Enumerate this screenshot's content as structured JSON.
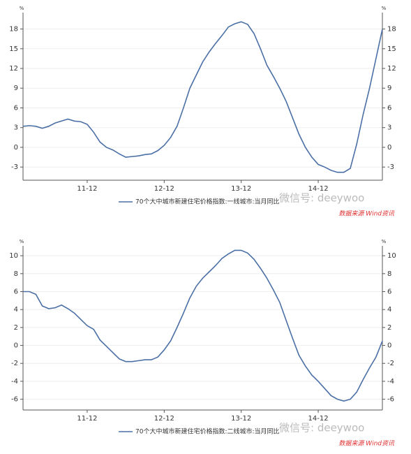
{
  "chart_data": [
    {
      "type": "line",
      "y_unit": "%",
      "categories": [
        null,
        null,
        null,
        null,
        null,
        null,
        null,
        null,
        null,
        null,
        "11-12",
        null,
        null,
        null,
        null,
        null,
        null,
        null,
        null,
        null,
        null,
        null,
        "12-12",
        null,
        null,
        null,
        null,
        null,
        null,
        null,
        null,
        null,
        null,
        null,
        "13-12",
        null,
        null,
        null,
        null,
        null,
        null,
        null,
        null,
        null,
        null,
        null,
        "14-12",
        null,
        null,
        null,
        null,
        null,
        null,
        null,
        null,
        null,
        null
      ],
      "series": [
        {
          "name": "70个大中城市新建住宅价格指数:一线城市:当月同比",
          "color": "#4a6fa5",
          "values": [
            3.2,
            3.3,
            3.2,
            2.9,
            3.2,
            3.7,
            4.0,
            4.3,
            4.0,
            3.9,
            3.5,
            2.3,
            0.8,
            0,
            -0.4,
            -1.0,
            -1.5,
            -1.4,
            -1.3,
            -1.1,
            -1.0,
            -0.5,
            0.3,
            1.5,
            3.2,
            6,
            9,
            11,
            13,
            14.5,
            15.8,
            17,
            18.3,
            18.8,
            19.1,
            18.7,
            17.3,
            15,
            12.5,
            10.8,
            9,
            7,
            4.5,
            2,
            0,
            -1.5,
            -2.6,
            -3.0,
            -3.5,
            -3.8,
            -3.8,
            -3.2,
            0.5,
            5,
            9,
            13.5,
            18
          ]
        }
      ],
      "ylim": [
        -5,
        20.5
      ],
      "yticks": [
        -3,
        0,
        3,
        6,
        9,
        12,
        15,
        18
      ],
      "grid": true,
      "watermark": "微信号: deeywoo",
      "source": "数据来源 Wind资讯"
    },
    {
      "type": "line",
      "y_unit": "%",
      "categories": [
        null,
        null,
        null,
        null,
        null,
        null,
        null,
        null,
        null,
        null,
        "11-12",
        null,
        null,
        null,
        null,
        null,
        null,
        null,
        null,
        null,
        null,
        null,
        "12-12",
        null,
        null,
        null,
        null,
        null,
        null,
        null,
        null,
        null,
        null,
        null,
        "13-12",
        null,
        null,
        null,
        null,
        null,
        null,
        null,
        null,
        null,
        null,
        null,
        "14-12",
        null,
        null,
        null,
        null,
        null,
        null,
        null,
        null,
        null,
        null
      ],
      "series": [
        {
          "name": "70个大中城市新建住宅价格指数:二线城市:当月同比",
          "color": "#4a6fa5",
          "values": [
            6.0,
            6.0,
            5.7,
            4.4,
            4.1,
            4.2,
            4.5,
            4.1,
            3.6,
            2.9,
            2.2,
            1.8,
            0.6,
            -0.1,
            -0.8,
            -1.5,
            -1.8,
            -1.8,
            -1.7,
            -1.6,
            -1.6,
            -1.3,
            -0.5,
            0.5,
            2.0,
            3.6,
            5.3,
            6.6,
            7.5,
            8.2,
            8.9,
            9.7,
            10.2,
            10.6,
            10.6,
            10.3,
            9.6,
            8.6,
            7.5,
            6.2,
            4.8,
            2.8,
            0.8,
            -1.1,
            -2.3,
            -3.3,
            -4.0,
            -4.8,
            -5.6,
            -6.0,
            -6.2,
            -6.0,
            -5.2,
            -3.8,
            -2.5,
            -1.3,
            0.5
          ]
        }
      ],
      "ylim": [
        -7.2,
        11.1
      ],
      "yticks": [
        -6,
        -4,
        -2,
        0,
        2,
        4,
        6,
        8,
        10
      ],
      "grid": true,
      "watermark": "微信号: deeywoo",
      "source": "数据来源 Wind资讯"
    }
  ]
}
